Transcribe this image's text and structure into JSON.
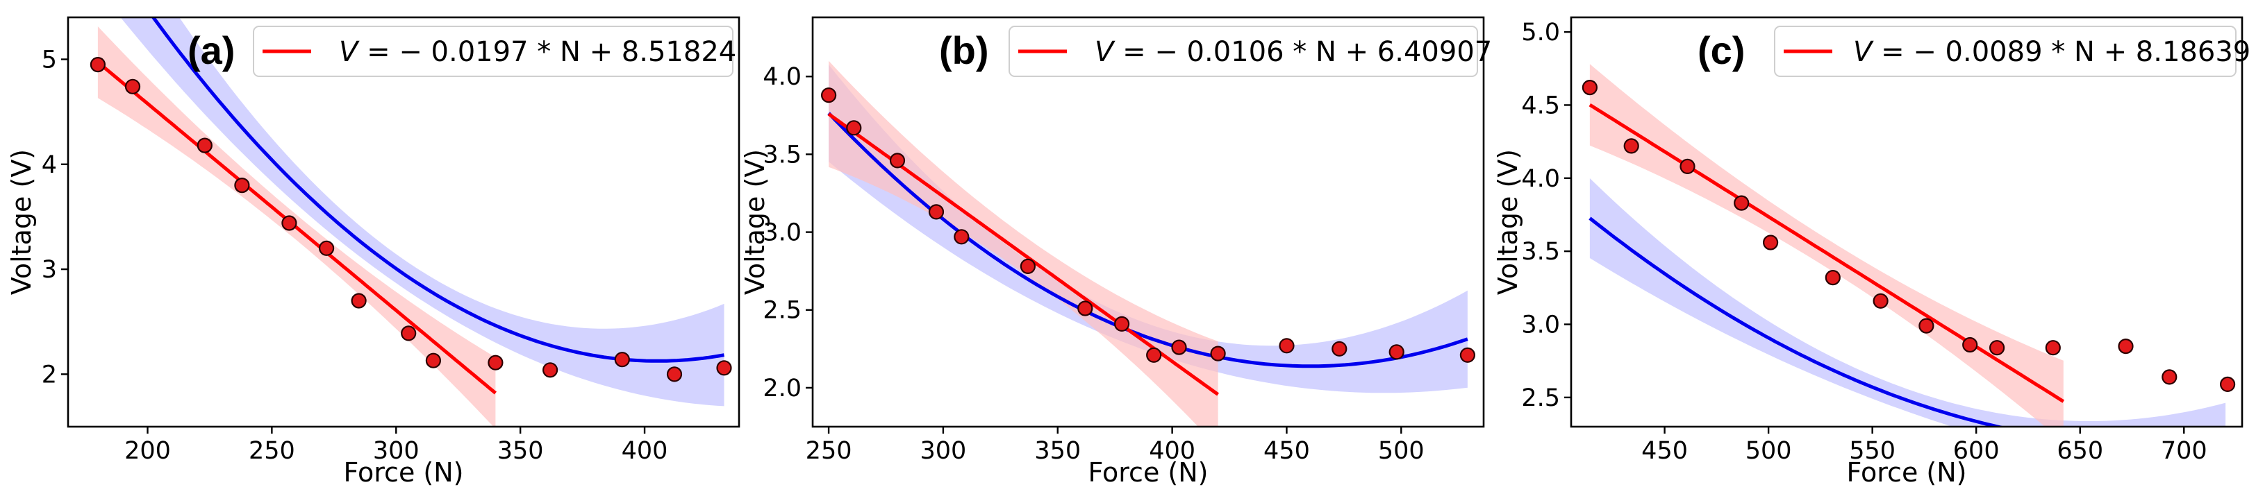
{
  "chart_data": [
    {
      "type": "scatter",
      "panel_label": "(a)",
      "xlabel": "Force (N)",
      "ylabel": "Voltage (V)",
      "xlim": [
        168,
        438
      ],
      "ylim": [
        1.5,
        5.4
      ],
      "xticks": [
        200,
        250,
        300,
        350,
        400
      ],
      "yticks": [
        2,
        3,
        4,
        5
      ],
      "points": {
        "x": [
          180,
          194,
          223,
          238,
          257,
          272,
          285,
          305,
          315,
          340,
          362,
          391,
          412,
          432
        ],
        "y": [
          4.95,
          4.74,
          4.18,
          3.8,
          3.44,
          3.2,
          2.7,
          2.39,
          2.13,
          2.11,
          2.04,
          2.14,
          2.0,
          2.06
        ]
      },
      "linear_fit": {
        "label_var": "V",
        "label_rhs": " = − 0.0197 * N + 8.51824",
        "slope": -0.0197,
        "intercept": 8.51824,
        "x_range": [
          180,
          340
        ]
      },
      "poly_fit": {
        "coeffs": [
          15.18,
          -0.06443,
          7.95e-05
        ],
        "x_range": [
          180,
          432
        ]
      },
      "band_halfwidth": {
        "linear": 0.22,
        "poly": 0.25
      },
      "legend_loc": "upper right"
    },
    {
      "type": "scatter",
      "panel_label": "(b)",
      "xlabel": "Force (N)",
      "ylabel": "Voltage (V)",
      "xlim": [
        243,
        536
      ],
      "ylim": [
        1.75,
        4.38
      ],
      "xticks": [
        250,
        300,
        350,
        400,
        450,
        500
      ],
      "yticks": [
        2.0,
        2.5,
        3.0,
        3.5,
        4.0
      ],
      "points": {
        "x": [
          250,
          261,
          280,
          297,
          308,
          337,
          362,
          378,
          392,
          403,
          420,
          450,
          473,
          498,
          529
        ],
        "y": [
          3.88,
          3.67,
          3.46,
          3.13,
          2.97,
          2.78,
          2.51,
          2.41,
          2.21,
          2.26,
          2.22,
          2.27,
          2.25,
          2.23,
          2.21
        ]
      },
      "linear_fit": {
        "label_var": "V",
        "label_rhs": " = − 0.0106 * N + 6.40907",
        "slope": -0.0106,
        "intercept": 6.40907,
        "x_range": [
          250,
          420
        ]
      },
      "poly_fit": {
        "coeffs": [
          9.932,
          -0.03387,
          3.68e-05
        ],
        "x_range": [
          250,
          529
        ]
      },
      "band_halfwidth": {
        "linear": 0.22,
        "poly": 0.16
      },
      "legend_loc": "upper right"
    },
    {
      "type": "scatter",
      "panel_label": "(c)",
      "xlabel": "Force (N)",
      "ylabel": "Voltage (V)",
      "xlim": [
        405,
        728
      ],
      "ylim": [
        2.3,
        5.1
      ],
      "xticks": [
        450,
        500,
        550,
        600,
        650,
        700
      ],
      "yticks": [
        2.5,
        3.0,
        3.5,
        4.0,
        4.5,
        5.0
      ],
      "points": {
        "x": [
          414,
          434,
          461,
          487,
          501,
          531,
          554,
          576,
          597,
          610,
          637,
          672,
          693,
          721
        ],
        "y": [
          4.62,
          4.22,
          4.08,
          3.83,
          3.56,
          3.32,
          3.16,
          2.99,
          2.86,
          2.84,
          2.84,
          2.85,
          2.64,
          2.59
        ]
      },
      "linear_fit": {
        "label_var": "V",
        "label_rhs": " = − 0.0089 * N + 8.18639",
        "slope": -0.0089,
        "intercept": 8.18639,
        "x_range": [
          414,
          642
        ]
      },
      "poly_fit": {
        "coeffs": [
          11.9,
          -0.02821,
          2.045e-05
        ],
        "x_range": [
          414,
          720
        ]
      },
      "band_halfwidth": {
        "linear": 0.18,
        "poly": 0.14
      },
      "legend_loc": "upper right"
    }
  ],
  "colors": {
    "linear_line": "#ff0000",
    "linear_band": "#ffc0c0",
    "poly_line": "#0000ee",
    "poly_band": "#c4c4ff",
    "marker_fill": "#e31a1c"
  }
}
